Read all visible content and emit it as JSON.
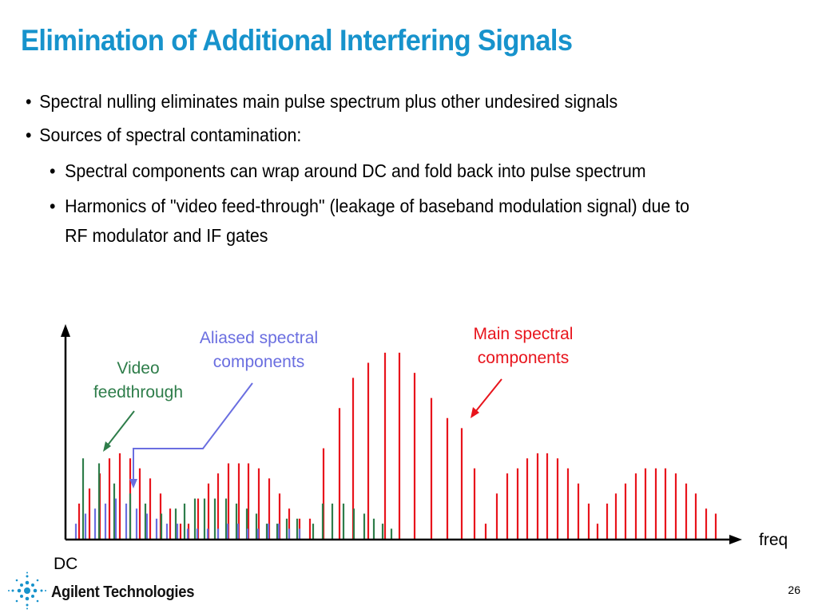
{
  "slide": {
    "title": "Elimination of Additional Interfering Signals",
    "page_number": "26",
    "logo_text": "Agilent Technologies"
  },
  "bullets": [
    {
      "level": 1,
      "text": "Spectral nulling eliminates main pulse spectrum plus other undesired signals"
    },
    {
      "level": 1,
      "text": "Sources of spectral contamination:"
    },
    {
      "level": 2,
      "text": "Spectral components can wrap around DC and fold back into pulse spectrum"
    },
    {
      "level": 2,
      "text": "Harmonics of \"video feed-through\" (leakage of baseband modulation signal) due to"
    },
    {
      "level": 2,
      "text": "RF modulator and IF gates",
      "continuation": true
    }
  ],
  "chart_data": {
    "type": "bar",
    "xlabel": "freq",
    "origin_label": "DC",
    "annotations": {
      "video": "Video\nfeedthrough",
      "aliased": "Aliased spectral\ncomponents",
      "main": "Main spectral\ncomponents"
    },
    "colors": {
      "main": "#e8141c",
      "video": "#2e7d4a",
      "aliased": "#6a6ee0",
      "axis": "#000000"
    },
    "series": [
      {
        "key": "main",
        "x": [
          99,
          112,
          125,
          137,
          150,
          163,
          175,
          188,
          201,
          213,
          226,
          236,
          248,
          261,
          273,
          286,
          299,
          311,
          324,
          337,
          350,
          362,
          375,
          388,
          405,
          425,
          442,
          461,
          482,
          500,
          519,
          540,
          560,
          578,
          594,
          608,
          622,
          635,
          648,
          660,
          673,
          685,
          698,
          711,
          724,
          737,
          748,
          760,
          771,
          783,
          796,
          808,
          821,
          833,
          846,
          859,
          871,
          884,
          896
        ],
        "y": [
          7,
          10,
          13,
          16,
          17,
          16,
          14,
          12,
          9,
          6,
          3,
          3,
          8,
          11,
          13,
          15,
          15,
          15,
          14,
          12,
          9,
          6,
          4,
          4,
          18,
          26,
          32,
          35,
          37,
          37,
          33,
          28,
          24,
          22,
          14,
          3,
          9,
          13,
          14,
          16,
          17,
          17,
          16,
          14,
          11,
          7,
          3,
          7,
          9,
          11,
          13,
          14,
          14,
          14,
          13,
          11,
          9,
          6,
          5
        ],
        "yunit": "relative amplitude"
      },
      {
        "key": "video",
        "x": [
          104,
          124,
          143,
          163,
          182,
          202,
          220,
          231,
          244,
          256,
          269,
          283,
          296,
          309,
          321,
          334,
          347,
          359,
          372,
          392,
          404,
          416,
          430,
          443,
          456,
          468,
          479,
          490
        ],
        "y": [
          16,
          15,
          11,
          9,
          7,
          5,
          6,
          7,
          8,
          8,
          8,
          8,
          7,
          6,
          5,
          3,
          3,
          4,
          4,
          3,
          7,
          7,
          7,
          6,
          5,
          4,
          3,
          2
        ]
      },
      {
        "key": "aliased",
        "x": [
          95,
          107,
          119,
          132,
          145,
          158,
          171,
          184,
          196,
          209,
          222,
          235,
          247,
          260,
          273,
          285,
          298,
          310,
          323,
          336,
          349,
          362,
          375
        ],
        "y": [
          3,
          5,
          6,
          7,
          8,
          7,
          6,
          5,
          4,
          3,
          3,
          2,
          2,
          2,
          2,
          3,
          3,
          2,
          2,
          3,
          3,
          2,
          2
        ]
      }
    ]
  }
}
